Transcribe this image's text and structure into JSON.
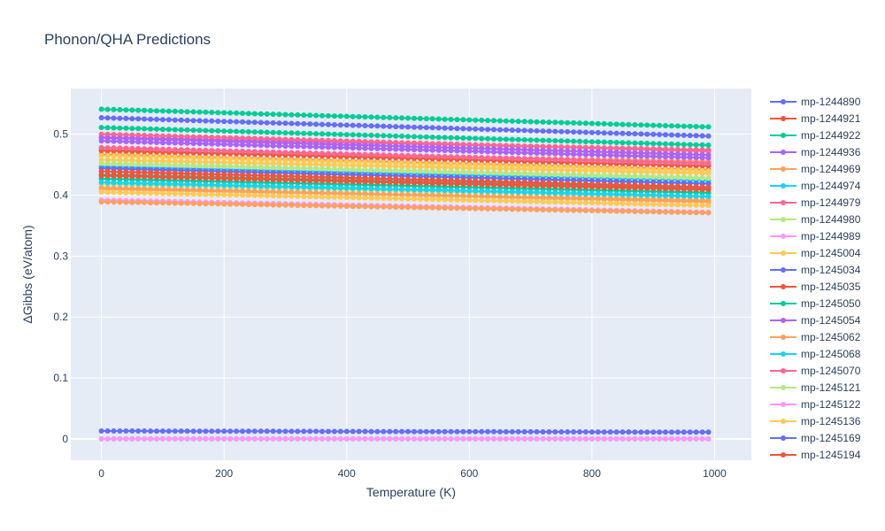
{
  "chart_data": {
    "type": "line",
    "title": "Phonon/QHA Predictions",
    "xlabel": "Temperature (K)",
    "ylabel": "ΔGibbs (eV/atom)",
    "xlim": [
      -50,
      1060
    ],
    "ylim": [
      -0.035,
      0.575
    ],
    "xticks": [
      0,
      200,
      400,
      600,
      800,
      1000
    ],
    "xtick_labels": [
      "0",
      "200",
      "400",
      "600",
      "800",
      "1000"
    ],
    "yticks": [
      0,
      0.1,
      0.2,
      0.3,
      0.4,
      0.5
    ],
    "ytick_labels": [
      "0",
      "0.1",
      "0.2",
      "0.3",
      "0.4",
      "0.5"
    ],
    "grid": true,
    "legend_position": "right",
    "plot_background": "#e5ecf6",
    "x": [
      0,
      990
    ],
    "series": [
      {
        "name": "mp-1244890",
        "color": "#636efa",
        "values": [
          0.527,
          0.497
        ]
      },
      {
        "name": "mp-1244921",
        "color": "#ef553b",
        "values": [
          0.474,
          0.448
        ]
      },
      {
        "name": "mp-1244922",
        "color": "#00cc96",
        "values": [
          0.541,
          0.512
        ]
      },
      {
        "name": "mp-1244936",
        "color": "#ab63fa",
        "values": [
          0.489,
          0.461
        ]
      },
      {
        "name": "mp-1244969",
        "color": "#ffa15a",
        "values": [
          0.412,
          0.389
        ]
      },
      {
        "name": "mp-1244974",
        "color": "#19d3f3",
        "values": [
          0.421,
          0.398
        ]
      },
      {
        "name": "mp-1244979",
        "color": "#ff6692",
        "values": [
          0.5,
          0.472
        ]
      },
      {
        "name": "mp-1244980",
        "color": "#b6e880",
        "values": [
          0.452,
          0.428
        ]
      },
      {
        "name": "mp-1244989",
        "color": "#ff97ff",
        "values": [
          0.392,
          0.372
        ]
      },
      {
        "name": "mp-1245004",
        "color": "#fecb52",
        "values": [
          0.465,
          0.44
        ]
      },
      {
        "name": "mp-1245034",
        "color": "#636efa",
        "values": [
          0.013,
          0.011
        ]
      },
      {
        "name": "mp-1245035",
        "color": "#ef553b",
        "values": [
          0.432,
          0.409
        ]
      },
      {
        "name": "mp-1245050",
        "color": "#00cc96",
        "values": [
          0.511,
          0.482
        ]
      },
      {
        "name": "mp-1245054",
        "color": "#ab63fa",
        "values": [
          0.494,
          0.466
        ]
      },
      {
        "name": "mp-1245062",
        "color": "#ffa15a",
        "values": [
          0.389,
          0.371
        ]
      },
      {
        "name": "mp-1245068",
        "color": "#19d3f3",
        "values": [
          0.0,
          0.0
        ]
      },
      {
        "name": "mp-1245070",
        "color": "#ff6692",
        "values": [
          0.478,
          0.452
        ]
      },
      {
        "name": "mp-1245121",
        "color": "#b6e880",
        "values": [
          0.0,
          0.0
        ]
      },
      {
        "name": "mp-1245122",
        "color": "#ff97ff",
        "values": [
          0.0,
          0.0
        ]
      },
      {
        "name": "mp-1245136",
        "color": "#fecb52",
        "values": [
          0.405,
          0.383
        ]
      },
      {
        "name": "mp-1245169",
        "color": "#636efa",
        "values": [
          0.444,
          0.419
        ]
      },
      {
        "name": "mp-1245194",
        "color": "#ef553b",
        "values": [
          0.439,
          0.413
        ]
      }
    ],
    "extra_series": [
      {
        "color": "#00cc96",
        "values": [
          0.427,
          0.404
        ]
      },
      {
        "color": "#00cc96",
        "values": [
          0.434,
          0.411
        ]
      },
      {
        "color": "#19d3f3",
        "values": [
          0.447,
          0.424
        ]
      },
      {
        "color": "#ff6692",
        "values": [
          0.495,
          0.474
        ]
      },
      {
        "color": "#ffa15a",
        "values": [
          0.472,
          0.455
        ]
      },
      {
        "color": "#fecb52",
        "values": [
          0.458,
          0.436
        ]
      },
      {
        "color": "#b6e880",
        "values": [
          0.418,
          0.396
        ]
      },
      {
        "color": "#ef553b",
        "values": [
          0.466,
          0.441
        ]
      },
      {
        "color": "#19d3f3",
        "values": [
          0.0,
          0.0
        ]
      },
      {
        "color": "#ffa15a",
        "values": [
          0.41,
          0.391
        ]
      }
    ]
  }
}
